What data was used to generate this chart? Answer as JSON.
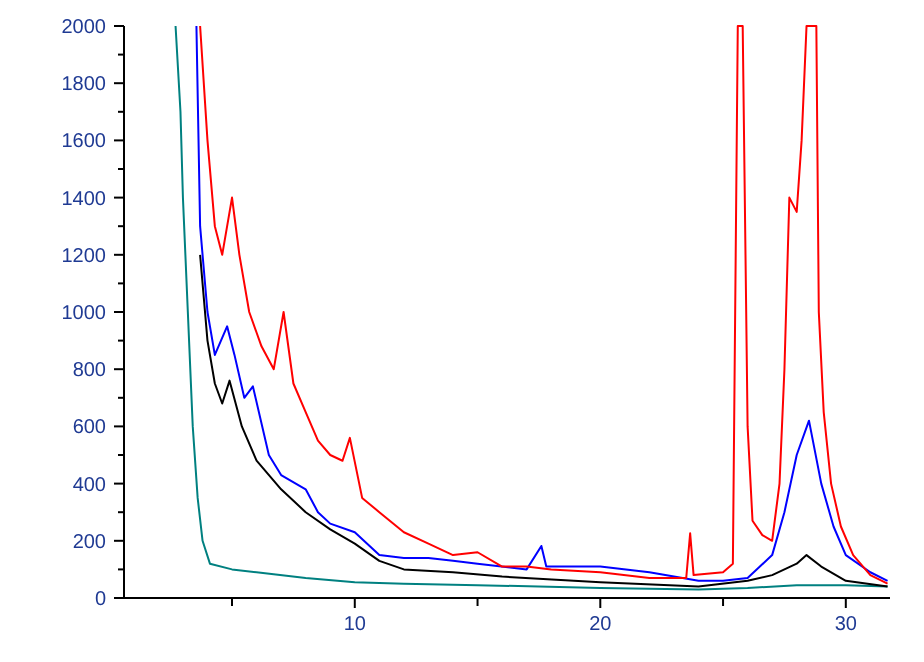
{
  "chart_data": {
    "type": "line",
    "xlim": [
      0.6,
      31.8
    ],
    "ylim": [
      0,
      2000
    ],
    "xticks": [
      {
        "value": 5,
        "label": null
      },
      10,
      {
        "value": 15,
        "label": null
      },
      20,
      {
        "value": 25,
        "label": null
      },
      30
    ],
    "yticks": [
      0,
      {
        "value": 100,
        "label": null
      },
      200,
      {
        "value": 300,
        "label": null
      },
      400,
      {
        "value": 500,
        "label": null
      },
      600,
      {
        "value": 700,
        "label": null
      },
      800,
      {
        "value": 900,
        "label": null
      },
      1000,
      {
        "value": 1100,
        "label": null
      },
      1200,
      {
        "value": 1300,
        "label": null
      },
      1400,
      {
        "value": 1500,
        "label": null
      },
      1600,
      {
        "value": 1700,
        "label": null
      },
      1800,
      {
        "value": 1900,
        "label": null
      },
      2000
    ],
    "grid": false,
    "line_style": "solid",
    "series": [
      {
        "color": "#008080",
        "x": [
          2.7,
          2.9,
          3.0,
          3.2,
          3.4,
          3.6,
          3.8,
          4.1,
          5,
          6,
          8,
          10,
          12,
          15,
          20,
          24,
          26,
          28,
          30,
          31.7
        ],
        "values": [
          2000,
          1700,
          1400,
          1000,
          600,
          350,
          200,
          120,
          100,
          90,
          70,
          55,
          50,
          45,
          35,
          30,
          35,
          45,
          45,
          40
        ]
      },
      {
        "color": "#000000",
        "x": [
          3.7,
          4.0,
          4.3,
          4.6,
          4.9,
          5.4,
          6,
          7,
          8,
          9,
          10,
          11,
          12,
          14,
          16,
          20,
          24,
          26,
          27,
          28,
          28.4,
          29,
          30,
          31.7
        ],
        "values": [
          1200,
          900,
          750,
          680,
          760,
          600,
          480,
          380,
          300,
          240,
          190,
          130,
          100,
          90,
          75,
          55,
          40,
          60,
          80,
          120,
          150,
          110,
          60,
          40
        ]
      },
      {
        "color": "#0000ff",
        "x": [
          3.55,
          3.7,
          4.0,
          4.3,
          4.8,
          5.1,
          5.5,
          5.85,
          6.5,
          7,
          8,
          8.5,
          9,
          10,
          11,
          12,
          13,
          14,
          15,
          17,
          17.6,
          17.8,
          20,
          22,
          24,
          25,
          26,
          27,
          27.5,
          28,
          28.5,
          29,
          29.5,
          30,
          31,
          31.7
        ],
        "values": [
          2000,
          1300,
          1000,
          850,
          950,
          850,
          700,
          740,
          500,
          430,
          380,
          300,
          260,
          230,
          150,
          140,
          140,
          130,
          120,
          100,
          182,
          110,
          110,
          90,
          60,
          60,
          70,
          150,
          300,
          500,
          620,
          400,
          250,
          150,
          90,
          60
        ]
      },
      {
        "color": "#ff0000",
        "x": [
          3.7,
          4.0,
          4.3,
          4.6,
          5.0,
          5.3,
          5.7,
          6.2,
          6.7,
          7.1,
          7.5,
          8,
          8.5,
          9,
          9.5,
          9.8,
          10.3,
          11,
          12,
          13,
          14,
          15,
          16,
          17,
          18,
          20,
          22,
          23.5,
          23.66,
          23.8,
          25,
          25.4,
          25.6,
          25.8,
          26.0,
          26.2,
          26.6,
          27.0,
          27.3,
          27.5,
          27.7,
          28.0,
          28.2,
          28.4,
          28.8,
          28.9,
          29.1,
          29.4,
          29.8,
          30.3,
          31,
          31.7
        ],
        "values": [
          2000,
          1600,
          1300,
          1200,
          1400,
          1200,
          1000,
          880,
          800,
          1000,
          750,
          650,
          550,
          500,
          480,
          560,
          350,
          300,
          230,
          190,
          150,
          160,
          110,
          110,
          100,
          90,
          70,
          70,
          226,
          80,
          90,
          120,
          2000,
          2000,
          600,
          270,
          220,
          200,
          400,
          800,
          1400,
          1350,
          1600,
          2000,
          2000,
          1000,
          650,
          400,
          250,
          150,
          80,
          50
        ]
      }
    ]
  }
}
